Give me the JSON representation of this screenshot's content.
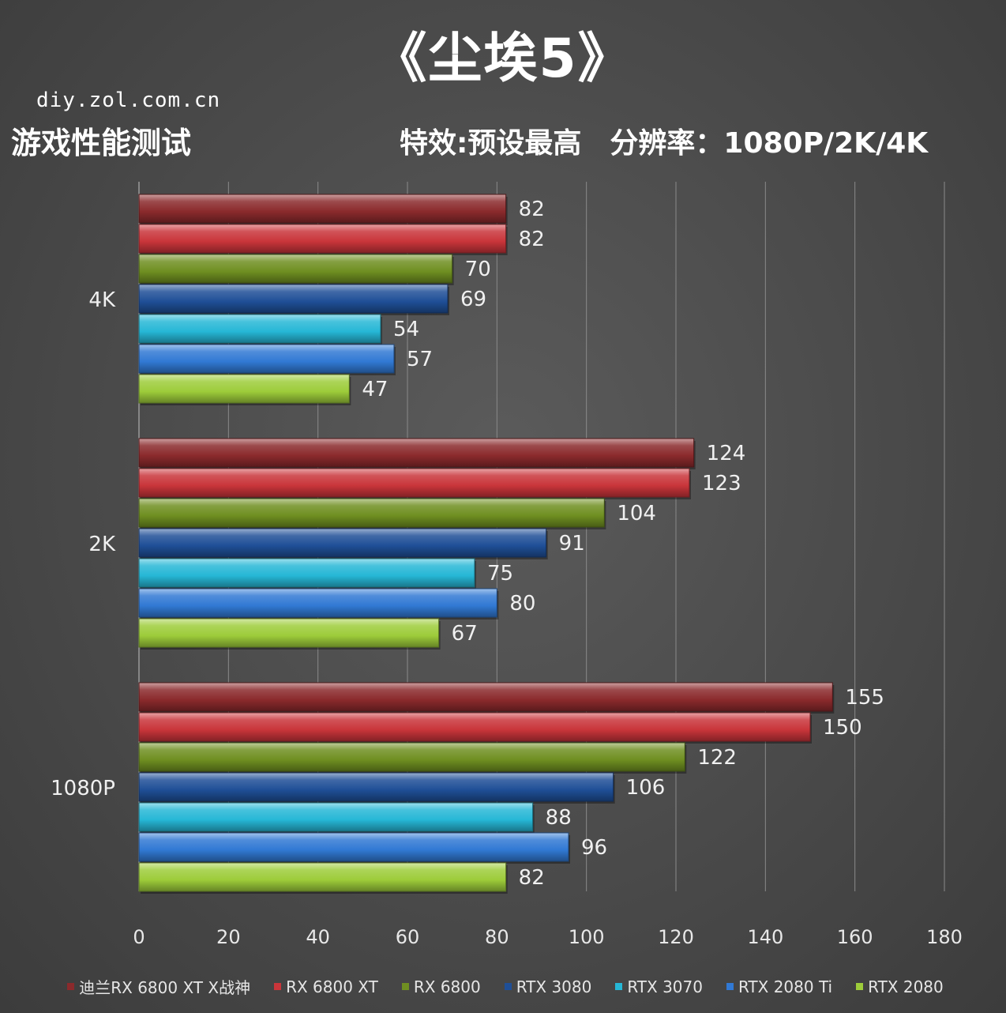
{
  "header": {
    "title": "《尘埃5》",
    "site": "diy.zol.com.cn",
    "subtitle": "游戏性能测试",
    "settings": "特效:预设最高　分辨率：1080P/2K/4K"
  },
  "chart_data": {
    "type": "bar",
    "orientation": "horizontal",
    "categories": [
      "4K",
      "2K",
      "1080P"
    ],
    "xlim": [
      0,
      180
    ],
    "xticks": [
      0,
      20,
      40,
      60,
      80,
      100,
      120,
      140,
      160,
      180
    ],
    "grid": true,
    "legend_position": "bottom",
    "series": [
      {
        "name": "迪兰RX 6800 XT X战神",
        "color": "#8b2a2c",
        "values": [
          82,
          124,
          155
        ]
      },
      {
        "name": "RX 6800 XT",
        "color": "#c9353a",
        "values": [
          82,
          123,
          150
        ]
      },
      {
        "name": "RX 6800",
        "color": "#6f8f21",
        "values": [
          70,
          104,
          122
        ]
      },
      {
        "name": "RTX 3080",
        "color": "#1f4f97",
        "values": [
          69,
          91,
          106
        ]
      },
      {
        "name": "RTX 3070",
        "color": "#26b7d6",
        "values": [
          54,
          75,
          88
        ]
      },
      {
        "name": "RTX 2080 Ti",
        "color": "#3179d4",
        "values": [
          57,
          80,
          96
        ]
      },
      {
        "name": "RTX 2080",
        "color": "#9dcc3a",
        "values": [
          47,
          67,
          82
        ]
      }
    ]
  }
}
